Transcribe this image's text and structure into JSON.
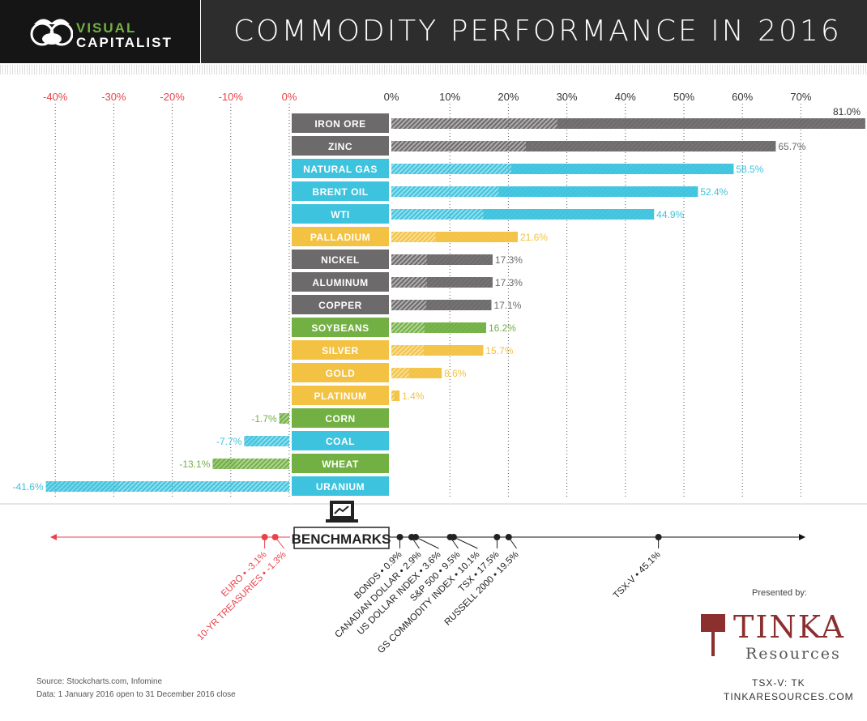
{
  "header": {
    "logo_line1": "VISUAL",
    "logo_line2": "CAPITALIST",
    "title": "COMMODITY PERFORMANCE IN 2016"
  },
  "colors": {
    "metal": "#6d6a6c",
    "energy": "#3ec3de",
    "precious": "#f3c243",
    "agri": "#72b043",
    "negative_axis": "#e8434b"
  },
  "chart_data": {
    "type": "bar",
    "orientation": "horizontal",
    "xlim": [
      -41.6,
      81.0
    ],
    "positive_ticks": [
      "0%",
      "10%",
      "20%",
      "30%",
      "40%",
      "50%",
      "60%",
      "70%"
    ],
    "negative_ticks": [
      "-40%",
      "-30%",
      "-20%",
      "-10%",
      "0%"
    ],
    "grid": true,
    "bars": [
      {
        "label": "IRON ORE",
        "value": 81.0,
        "display": "81.0%",
        "group": "metal"
      },
      {
        "label": "ZINC",
        "value": 65.7,
        "display": "65.7%",
        "group": "metal"
      },
      {
        "label": "NATURAL GAS",
        "value": 58.5,
        "display": "58.5%",
        "group": "energy"
      },
      {
        "label": "BRENT OIL",
        "value": 52.4,
        "display": "52.4%",
        "group": "energy"
      },
      {
        "label": "WTI",
        "value": 44.9,
        "display": "44.9%",
        "group": "energy"
      },
      {
        "label": "PALLADIUM",
        "value": 21.6,
        "display": "21.6%",
        "group": "precious"
      },
      {
        "label": "NICKEL",
        "value": 17.3,
        "display": "17.3%",
        "group": "metal"
      },
      {
        "label": "ALUMINUM",
        "value": 17.3,
        "display": "17.3%",
        "group": "metal"
      },
      {
        "label": "COPPER",
        "value": 17.1,
        "display": "17.1%",
        "group": "metal"
      },
      {
        "label": "SOYBEANS",
        "value": 16.2,
        "display": "16.2%",
        "group": "agri"
      },
      {
        "label": "SILVER",
        "value": 15.7,
        "display": "15.7%",
        "group": "precious"
      },
      {
        "label": "GOLD",
        "value": 8.6,
        "display": "8.6%",
        "group": "precious"
      },
      {
        "label": "PLATINUM",
        "value": 1.4,
        "display": "1.4%",
        "group": "precious"
      },
      {
        "label": "CORN",
        "value": -1.7,
        "display": "-1.7%",
        "group": "agri"
      },
      {
        "label": "COAL",
        "value": -7.7,
        "display": "-7.7%",
        "group": "energy"
      },
      {
        "label": "WHEAT",
        "value": -13.1,
        "display": "-13.1%",
        "group": "agri"
      },
      {
        "label": "URANIUM",
        "value": -41.6,
        "display": "-41.6%",
        "group": "energy"
      }
    ],
    "benchmarks_title": "BENCHMARKS",
    "benchmarks": [
      {
        "label": "EURO • -3.1%",
        "value": -3.1
      },
      {
        "label": "10-YR TREASURIES • -1.3%",
        "value": -1.3
      },
      {
        "label": "BONDS • 0.9%",
        "value": 0.9
      },
      {
        "label": "CANADIAN DOLLAR • 2.9%",
        "value": 2.9
      },
      {
        "label": "US DOLLAR INDEX • 3.6%",
        "value": 3.6
      },
      {
        "label": "S&P 500 • 9.5%",
        "value": 9.5
      },
      {
        "label": "GS COMMODITY INDEX • 10.1%",
        "value": 10.1
      },
      {
        "label": "TSX • 17.5%",
        "value": 17.5
      },
      {
        "label": "RUSSELL 2000 • 19.5%",
        "value": 19.5
      },
      {
        "label": "TSX-V • 45.1%",
        "value": 45.1
      }
    ]
  },
  "footer": {
    "source": "Source: Stockcharts.com, Infomine",
    "data_note": "Data: 1 January 2016 open to 31 December 2016 close",
    "presented_by": "Presented by:",
    "sponsor_line1": "TINKA",
    "sponsor_line2": "Resources",
    "ticker": "TSX-V: TK",
    "website": "TINKARESOURCES.COM"
  }
}
